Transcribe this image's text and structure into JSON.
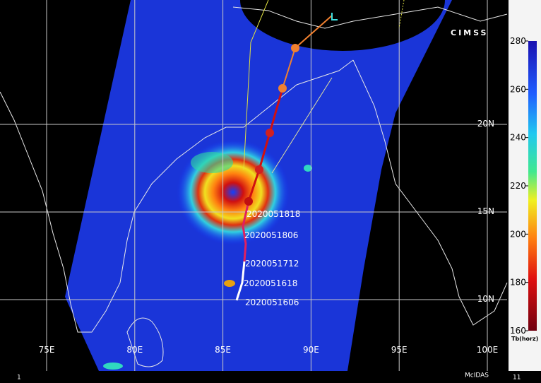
{
  "map": {
    "logo": "CIMSS",
    "lon_labels": [
      "75E",
      "80E",
      "85E",
      "90E",
      "95E",
      "100E"
    ],
    "lat_labels": [
      "20N",
      "15N",
      "10N"
    ],
    "track_labels": [
      "2020051818",
      "2020051806",
      "2020051712",
      "2020051618",
      "2020051606"
    ],
    "footer_left": "1",
    "footer_center": "McIDAS",
    "footer_right": "11"
  },
  "colorbar": {
    "label": "Tb(horz)",
    "range": [
      160,
      280
    ],
    "ticks": [
      280,
      260,
      240,
      220,
      200,
      180,
      160
    ]
  }
}
